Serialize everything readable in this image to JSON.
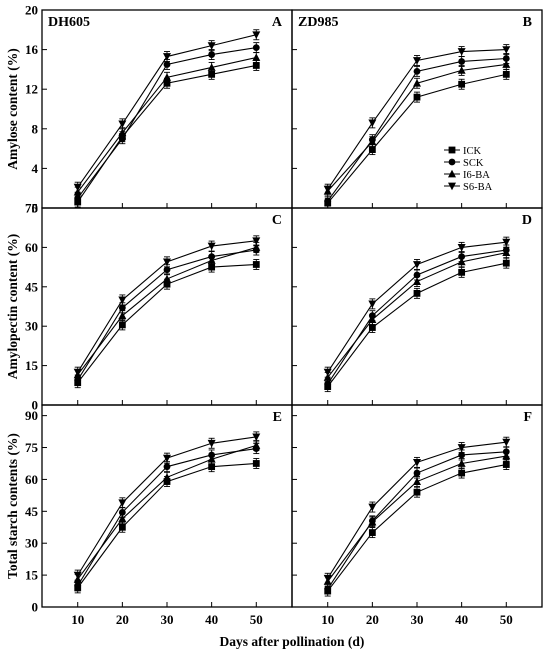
{
  "figure": {
    "xlabel": "Days after pollination (d)",
    "x_ticks": [
      10,
      20,
      30,
      40,
      50
    ],
    "rows": [
      {
        "ylabel": "Amylose content (%)",
        "ylim": [
          0,
          20
        ],
        "yticks": [
          0,
          4,
          8,
          12,
          16,
          20
        ]
      },
      {
        "ylabel": "Amylopectin content (%)",
        "ylim": [
          0,
          75
        ],
        "yticks": [
          0,
          15,
          30,
          45,
          60,
          75
        ]
      },
      {
        "ylabel": "Total starch contents (%)",
        "ylim": [
          0,
          95
        ],
        "yticks": [
          0,
          15,
          30,
          45,
          60,
          75,
          90
        ]
      }
    ],
    "legend": {
      "panel": "B",
      "placement": "right",
      "items": [
        {
          "name": "ICK",
          "marker": "square"
        },
        {
          "name": "SCK",
          "marker": "circle"
        },
        {
          "name": "I6-BA",
          "marker": "triangle-up"
        },
        {
          "name": "S6-BA",
          "marker": "triangle-down"
        }
      ]
    },
    "color": "#000000"
  },
  "chart_data": [
    {
      "type": "line",
      "panel": "A",
      "title": "DH605",
      "x": [
        10,
        20,
        30,
        40,
        50
      ],
      "series": [
        {
          "name": "ICK",
          "values": [
            0.6,
            7.2,
            12.6,
            13.5,
            14.4
          ]
        },
        {
          "name": "SCK",
          "values": [
            1.0,
            7.0,
            14.5,
            15.5,
            16.2
          ]
        },
        {
          "name": "I6-BA",
          "values": [
            1.6,
            7.6,
            13.2,
            14.2,
            15.2
          ]
        },
        {
          "name": "S6-BA",
          "values": [
            2.1,
            8.5,
            15.3,
            16.4,
            17.5
          ]
        }
      ]
    },
    {
      "type": "line",
      "panel": "B",
      "title": "ZD985",
      "x": [
        10,
        20,
        30,
        40,
        50
      ],
      "series": [
        {
          "name": "ICK",
          "values": [
            0.5,
            5.9,
            11.2,
            12.5,
            13.5
          ]
        },
        {
          "name": "SCK",
          "values": [
            0.7,
            6.9,
            13.8,
            14.8,
            15.1
          ]
        },
        {
          "name": "I6-BA",
          "values": [
            1.7,
            6.7,
            12.6,
            13.9,
            14.5
          ]
        },
        {
          "name": "S6-BA",
          "values": [
            1.9,
            8.6,
            14.9,
            15.8,
            16.0
          ]
        }
      ]
    },
    {
      "type": "line",
      "panel": "C",
      "title": "",
      "x": [
        10,
        20,
        30,
        40,
        50
      ],
      "series": [
        {
          "name": "ICK",
          "values": [
            8.5,
            30.5,
            46.0,
            52.5,
            53.5
          ]
        },
        {
          "name": "SCK",
          "values": [
            9.5,
            37.0,
            51.5,
            56.5,
            59.0
          ]
        },
        {
          "name": "I6-BA",
          "values": [
            11.5,
            34.0,
            48.0,
            55.0,
            60.0
          ]
        },
        {
          "name": "S6-BA",
          "values": [
            12.5,
            40.0,
            54.5,
            60.5,
            62.5
          ]
        }
      ]
    },
    {
      "type": "line",
      "panel": "D",
      "title": "",
      "x": [
        10,
        20,
        30,
        40,
        50
      ],
      "series": [
        {
          "name": "ICK",
          "values": [
            7.0,
            29.5,
            42.5,
            50.5,
            54.0
          ]
        },
        {
          "name": "SCK",
          "values": [
            8.0,
            34.0,
            49.5,
            56.5,
            59.0
          ]
        },
        {
          "name": "I6-BA",
          "values": [
            10.5,
            32.5,
            47.0,
            54.5,
            58.0
          ]
        },
        {
          "name": "S6-BA",
          "values": [
            12.5,
            38.5,
            53.5,
            60.0,
            62.0
          ]
        }
      ]
    },
    {
      "type": "line",
      "panel": "E",
      "title": "",
      "x": [
        10,
        20,
        30,
        40,
        50
      ],
      "series": [
        {
          "name": "ICK",
          "values": [
            9.0,
            37.5,
            59.0,
            66.0,
            67.5
          ]
        },
        {
          "name": "SCK",
          "values": [
            10.0,
            44.5,
            66.0,
            71.5,
            74.5
          ]
        },
        {
          "name": "I6-BA",
          "values": [
            13.0,
            41.5,
            61.0,
            69.5,
            76.0
          ]
        },
        {
          "name": "S6-BA",
          "values": [
            15.0,
            49.0,
            70.0,
            77.0,
            80.0
          ]
        }
      ]
    },
    {
      "type": "line",
      "panel": "F",
      "title": "",
      "x": [
        10,
        20,
        30,
        40,
        50
      ],
      "series": [
        {
          "name": "ICK",
          "values": [
            7.5,
            35.0,
            54.0,
            63.0,
            67.0
          ]
        },
        {
          "name": "SCK",
          "values": [
            8.5,
            40.5,
            63.0,
            71.5,
            73.0
          ]
        },
        {
          "name": "I6-BA",
          "values": [
            12.0,
            40.0,
            59.0,
            67.5,
            71.0
          ]
        },
        {
          "name": "S6-BA",
          "values": [
            13.5,
            47.0,
            68.0,
            75.0,
            77.5
          ]
        }
      ]
    }
  ]
}
